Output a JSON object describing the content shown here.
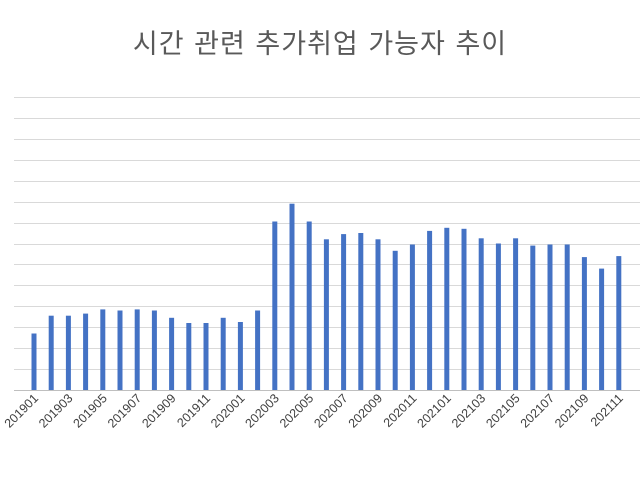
{
  "chart_data": {
    "type": "bar",
    "title": "시간 관련 추가취업 가능자 추이",
    "xlabel": "",
    "ylabel": "",
    "ylim": [
      0,
      1400000
    ],
    "grid": true,
    "color": "#4472c4",
    "categories": [
      "201901",
      "201902",
      "201903",
      "201904",
      "201905",
      "201906",
      "201907",
      "201908",
      "201909",
      "201910",
      "201911",
      "201912",
      "202001",
      "202002",
      "202003",
      "202004",
      "202005",
      "202006",
      "202007",
      "202008",
      "202009",
      "202010",
      "202011",
      "202012",
      "202101",
      "202102",
      "202103",
      "202104",
      "202105",
      "202106",
      "202107",
      "202108",
      "202109",
      "202110",
      "202111"
    ],
    "xtick_labels": [
      "201901",
      "201903",
      "201905",
      "201907",
      "201909",
      "201911",
      "202001",
      "202003",
      "202005",
      "202007",
      "202009",
      "202011",
      "202101",
      "202103",
      "202105",
      "202107",
      "202109",
      "202111"
    ],
    "series": [
      {
        "values": [
          270000,
          355000,
          355000,
          365000,
          385000,
          380000,
          385000,
          380000,
          345000,
          320000,
          320000,
          345000,
          325000,
          380000,
          805000,
          890000,
          805000,
          720000,
          745000,
          750000,
          720000,
          665000,
          695000,
          760000,
          775000,
          770000,
          725000,
          700000,
          725000,
          690000,
          695000,
          695000,
          635000,
          580000,
          640000
        ]
      }
    ]
  }
}
